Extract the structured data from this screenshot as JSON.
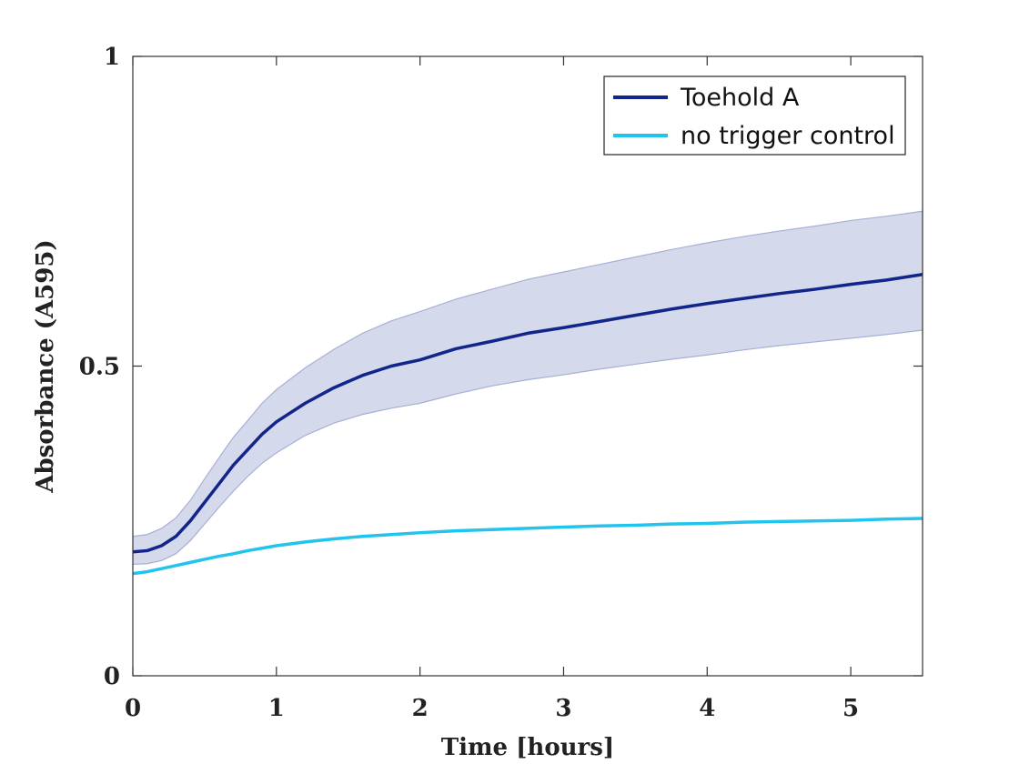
{
  "chart_data": {
    "type": "line",
    "title": "",
    "xlabel": "Time [hours]",
    "ylabel": "Absorbance (A595)",
    "xlim": [
      0,
      5.5
    ],
    "ylim": [
      0,
      1
    ],
    "x_ticks": [
      0,
      1,
      2,
      3,
      4,
      5
    ],
    "x_tick_labels": [
      "0",
      "1",
      "2",
      "3",
      "4",
      "5"
    ],
    "y_ticks": [
      0,
      0.5,
      1
    ],
    "y_tick_labels": [
      "0",
      "0.5",
      "1"
    ],
    "grid": false,
    "legend_position": "top-right",
    "x": [
      0,
      0.1,
      0.2,
      0.3,
      0.4,
      0.5,
      0.6,
      0.7,
      0.8,
      0.9,
      1.0,
      1.2,
      1.4,
      1.6,
      1.8,
      2.0,
      2.25,
      2.5,
      2.75,
      3.0,
      3.25,
      3.5,
      3.75,
      4.0,
      4.25,
      4.5,
      4.75,
      5.0,
      5.25,
      5.5
    ],
    "series": [
      {
        "name": "Toehold A",
        "color": "#12258a",
        "band_color": "#d4d9ec",
        "band_edge_color": "#a8afd6",
        "values": [
          0.2,
          0.202,
          0.21,
          0.225,
          0.25,
          0.28,
          0.31,
          0.34,
          0.365,
          0.39,
          0.41,
          0.44,
          0.465,
          0.485,
          0.5,
          0.51,
          0.528,
          0.54,
          0.553,
          0.562,
          0.572,
          0.582,
          0.592,
          0.601,
          0.609,
          0.617,
          0.624,
          0.632,
          0.639,
          0.648
        ],
        "upper": [
          0.225,
          0.228,
          0.238,
          0.255,
          0.283,
          0.318,
          0.352,
          0.385,
          0.412,
          0.44,
          0.462,
          0.497,
          0.527,
          0.553,
          0.573,
          0.588,
          0.608,
          0.624,
          0.64,
          0.652,
          0.664,
          0.676,
          0.688,
          0.699,
          0.709,
          0.718,
          0.726,
          0.735,
          0.742,
          0.75
        ],
        "lower": [
          0.18,
          0.181,
          0.186,
          0.197,
          0.218,
          0.245,
          0.272,
          0.298,
          0.322,
          0.343,
          0.36,
          0.388,
          0.408,
          0.422,
          0.432,
          0.44,
          0.455,
          0.468,
          0.478,
          0.486,
          0.495,
          0.503,
          0.511,
          0.518,
          0.526,
          0.533,
          0.539,
          0.545,
          0.551,
          0.558
        ]
      },
      {
        "name": "no trigger control",
        "color": "#22c4ee",
        "values": [
          0.165,
          0.168,
          0.173,
          0.178,
          0.183,
          0.188,
          0.193,
          0.197,
          0.202,
          0.206,
          0.21,
          0.216,
          0.221,
          0.225,
          0.228,
          0.231,
          0.234,
          0.236,
          0.238,
          0.24,
          0.242,
          0.243,
          0.245,
          0.246,
          0.248,
          0.249,
          0.25,
          0.251,
          0.253,
          0.254
        ]
      }
    ]
  }
}
